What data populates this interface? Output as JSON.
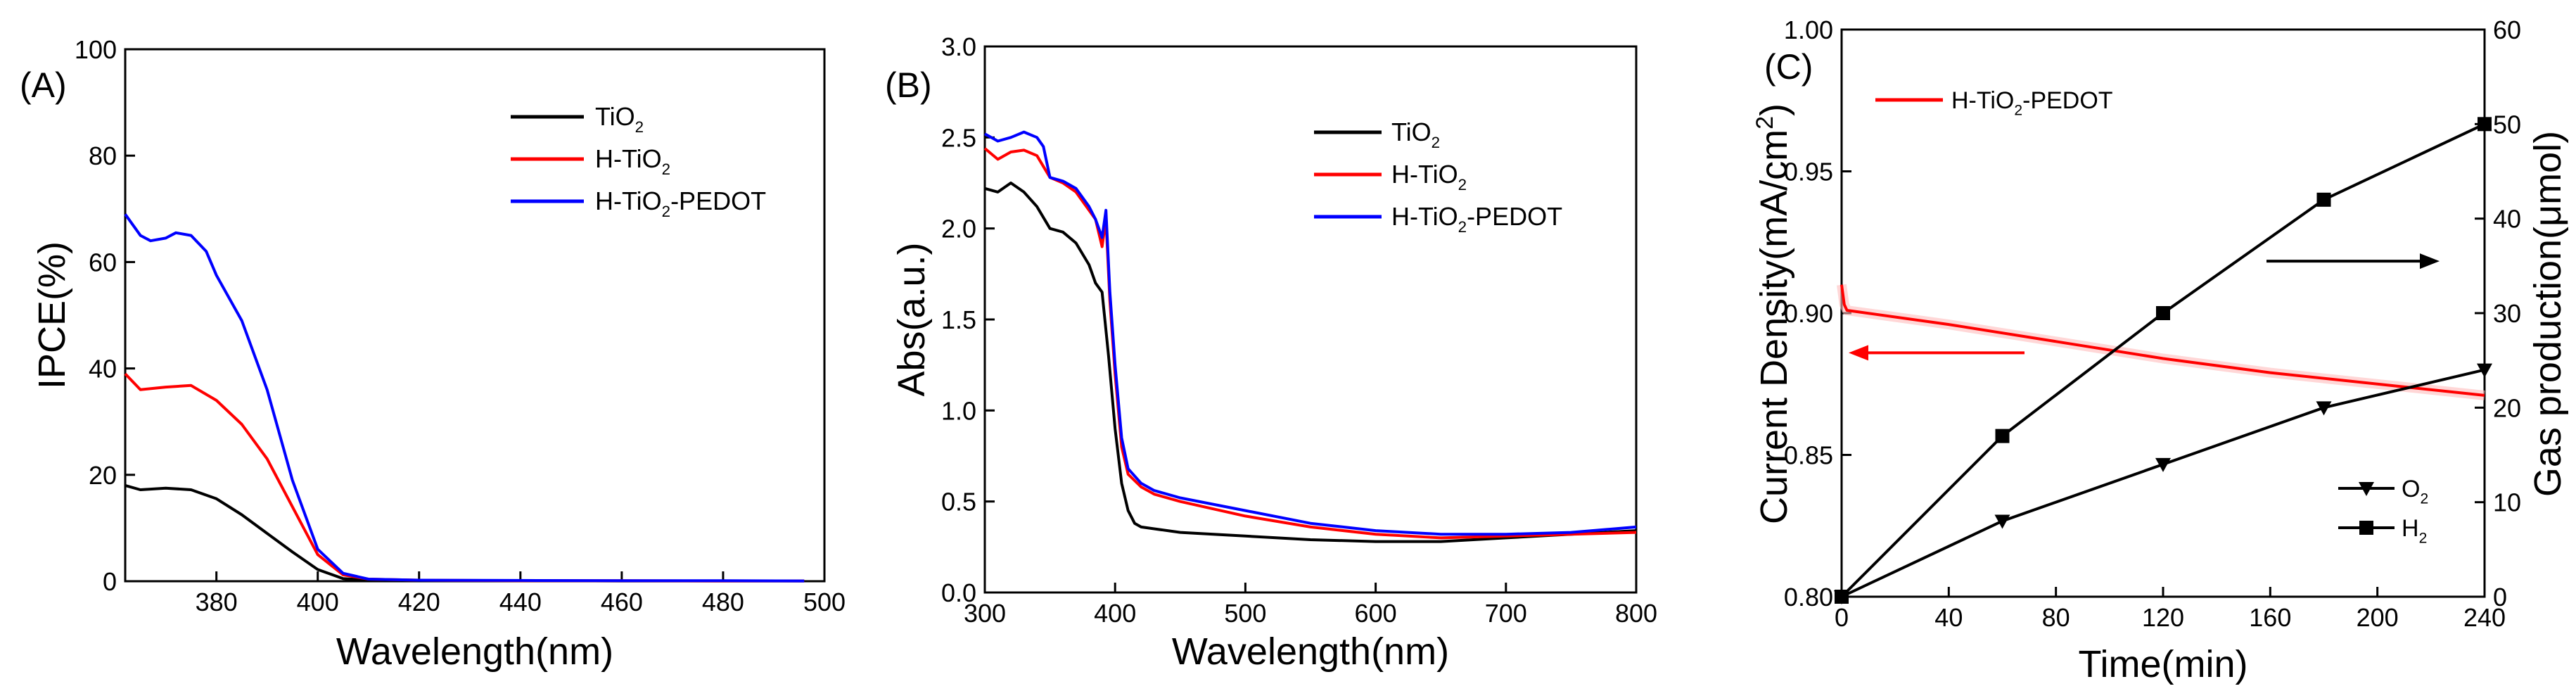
{
  "chart_data": [
    {
      "panel": "(A)",
      "type": "line",
      "title": "",
      "xlabel": "Wavelength(nm)",
      "ylabel": "IPCE(%)",
      "xlim": [
        362,
        500
      ],
      "ylim": [
        0,
        100
      ],
      "xticks": [
        380,
        400,
        420,
        440,
        460,
        480,
        500
      ],
      "xtick_labels": [
        "380",
        "400",
        "420",
        "440",
        "460",
        "480",
        "500"
      ],
      "yticks": [
        0,
        20,
        40,
        60,
        80,
        100
      ],
      "ytick_labels": [
        "0",
        "20",
        "40",
        "60",
        "80",
        "100"
      ],
      "legend": {
        "position": "top-right",
        "entries": [
          {
            "base": "TiO",
            "sub": "2",
            "rest": "",
            "series": 0
          },
          {
            "base": "H-TiO",
            "sub": "2",
            "rest": "",
            "series": 1
          },
          {
            "base": "H-TiO",
            "sub": "2",
            "rest": "-PEDOT",
            "series": 2
          }
        ]
      },
      "series": [
        {
          "name": "TiO2",
          "color": "#000000",
          "x": [
            362,
            365,
            370,
            375,
            380,
            385,
            390,
            395,
            400,
            405,
            410,
            420,
            440,
            460,
            480,
            496
          ],
          "y": [
            18,
            17.2,
            17.5,
            17.2,
            15.5,
            12.5,
            9,
            5.5,
            2.2,
            0.5,
            0.2,
            0.1,
            0.1,
            0.05,
            0.05,
            0.05
          ]
        },
        {
          "name": "H-TiO2",
          "color": "#ff0000",
          "x": [
            362,
            365,
            370,
            375,
            380,
            385,
            390,
            395,
            400,
            405,
            410,
            420,
            440,
            460,
            480,
            496
          ],
          "y": [
            39,
            36,
            36.5,
            36.8,
            34,
            29.5,
            23,
            14,
            5,
            1.2,
            0.4,
            0.2,
            0.1,
            0.1,
            0.05,
            0.05
          ]
        },
        {
          "name": "H-TiO2-PEDOT",
          "color": "#0000ff",
          "x": [
            362,
            365,
            367,
            370,
            372,
            375,
            378,
            380,
            385,
            390,
            395,
            400,
            405,
            410,
            420,
            440,
            460,
            480,
            496
          ],
          "y": [
            69,
            65,
            64,
            64.5,
            65.5,
            65,
            62,
            57.5,
            49,
            36,
            19,
            6,
            1.5,
            0.4,
            0.2,
            0.15,
            0.1,
            0.1,
            0.05
          ]
        }
      ]
    },
    {
      "panel": "(B)",
      "type": "line",
      "title": "",
      "xlabel": "Wavelength(nm)",
      "ylabel": "Abs(a.u.)",
      "xlim": [
        300,
        800
      ],
      "ylim": [
        0,
        3.0
      ],
      "xticks": [
        300,
        400,
        500,
        600,
        700,
        800
      ],
      "xtick_labels": [
        "300",
        "400",
        "500",
        "600",
        "700",
        "800"
      ],
      "yticks": [
        0,
        0.5,
        1.0,
        1.5,
        2.0,
        2.5,
        3.0
      ],
      "ytick_labels": [
        "0.0",
        "0.5",
        "1.0",
        "1.5",
        "2.0",
        "2.5",
        "3.0"
      ],
      "legend": {
        "position": "top-right",
        "entries": [
          {
            "base": "TiO",
            "sub": "2",
            "rest": "",
            "series": 0
          },
          {
            "base": "H-TiO",
            "sub": "2",
            "rest": "",
            "series": 1
          },
          {
            "base": "H-TiO",
            "sub": "2",
            "rest": "-PEDOT",
            "series": 2
          }
        ]
      },
      "series": [
        {
          "name": "TiO2",
          "color": "#000000",
          "x": [
            300,
            310,
            320,
            330,
            340,
            350,
            360,
            370,
            380,
            385,
            390,
            395,
            400,
            405,
            410,
            415,
            420,
            430,
            450,
            500,
            550,
            600,
            650,
            700,
            750,
            800
          ],
          "y": [
            2.22,
            2.2,
            2.25,
            2.2,
            2.12,
            2.0,
            1.98,
            1.92,
            1.8,
            1.7,
            1.65,
            1.3,
            0.9,
            0.6,
            0.45,
            0.38,
            0.36,
            0.35,
            0.33,
            0.31,
            0.29,
            0.28,
            0.28,
            0.3,
            0.32,
            0.34
          ]
        },
        {
          "name": "H-TiO2",
          "color": "#ff0000",
          "x": [
            300,
            310,
            320,
            330,
            340,
            350,
            360,
            370,
            380,
            385,
            390,
            393,
            396,
            400,
            405,
            410,
            420,
            430,
            450,
            500,
            550,
            600,
            650,
            700,
            750,
            800
          ],
          "y": [
            2.44,
            2.38,
            2.42,
            2.43,
            2.4,
            2.28,
            2.25,
            2.2,
            2.1,
            2.05,
            1.9,
            2.05,
            1.6,
            1.2,
            0.8,
            0.65,
            0.58,
            0.54,
            0.5,
            0.42,
            0.36,
            0.32,
            0.3,
            0.31,
            0.32,
            0.33
          ]
        },
        {
          "name": "H-TiO2-PEDOT",
          "color": "#0000ff",
          "x": [
            300,
            310,
            320,
            330,
            340,
            345,
            350,
            360,
            370,
            380,
            385,
            390,
            393,
            396,
            400,
            405,
            410,
            420,
            430,
            450,
            500,
            550,
            600,
            650,
            700,
            750,
            800
          ],
          "y": [
            2.52,
            2.48,
            2.5,
            2.53,
            2.5,
            2.45,
            2.28,
            2.26,
            2.22,
            2.12,
            2.05,
            1.95,
            2.1,
            1.65,
            1.25,
            0.85,
            0.68,
            0.6,
            0.56,
            0.52,
            0.45,
            0.38,
            0.34,
            0.32,
            0.32,
            0.33,
            0.36
          ]
        }
      ]
    },
    {
      "panel": "(C)",
      "type": "line",
      "title": "",
      "xlabel": "Time(min)",
      "ylabel": "Current Density(mA/cm",
      "ylabel_sup": "2",
      "ylabel_end": ")",
      "y2label": "Gas production(μmol)",
      "xlim": [
        0,
        240
      ],
      "ylim": [
        0.8,
        1.0
      ],
      "y2lim": [
        0,
        60
      ],
      "xticks": [
        0,
        40,
        80,
        120,
        160,
        200,
        240
      ],
      "xtick_labels": [
        "0",
        "40",
        "80",
        "120",
        "160",
        "200",
        "240"
      ],
      "yticks": [
        0.8,
        0.85,
        0.9,
        0.95,
        1.0
      ],
      "ytick_labels": [
        "0.80",
        "0.85",
        "0.90",
        "0.95",
        "1.00"
      ],
      "y2ticks": [
        0,
        10,
        20,
        30,
        40,
        50,
        60
      ],
      "y2tick_labels": [
        "0",
        "10",
        "20",
        "30",
        "40",
        "50",
        "60"
      ],
      "legend_top": {
        "position": "top-left",
        "base": "H-TiO",
        "sub": "2",
        "rest": "-PEDOT",
        "color": "#ff0000"
      },
      "legend_bottom": {
        "position": "bottom-right",
        "entries": [
          {
            "base": "O",
            "sub": "2",
            "marker": "triangle-down"
          },
          {
            "base": "H",
            "sub": "2",
            "marker": "square"
          }
        ]
      },
      "arrows": [
        {
          "direction": "left",
          "color": "#ff0000",
          "meaning": "current density on left axis"
        },
        {
          "direction": "right",
          "color": "#000000",
          "meaning": "gas production on right axis"
        }
      ],
      "series": [
        {
          "name": "H-TiO2-PEDOT",
          "axis": "left",
          "color": "#ff0000",
          "x": [
            0,
            1,
            2,
            40,
            80,
            120,
            160,
            200,
            240
          ],
          "y": [
            0.91,
            0.903,
            0.901,
            0.896,
            0.89,
            0.884,
            0.879,
            0.875,
            0.871
          ]
        },
        {
          "name": "O2",
          "axis": "right",
          "color": "#000000",
          "marker": "triangle-down",
          "x": [
            0,
            60,
            120,
            180,
            240
          ],
          "y": [
            0,
            8,
            14,
            20,
            24
          ]
        },
        {
          "name": "H2",
          "axis": "right",
          "color": "#000000",
          "marker": "square",
          "x": [
            0,
            60,
            120,
            180,
            240
          ],
          "y": [
            0,
            17,
            30,
            42,
            50
          ]
        }
      ]
    }
  ]
}
